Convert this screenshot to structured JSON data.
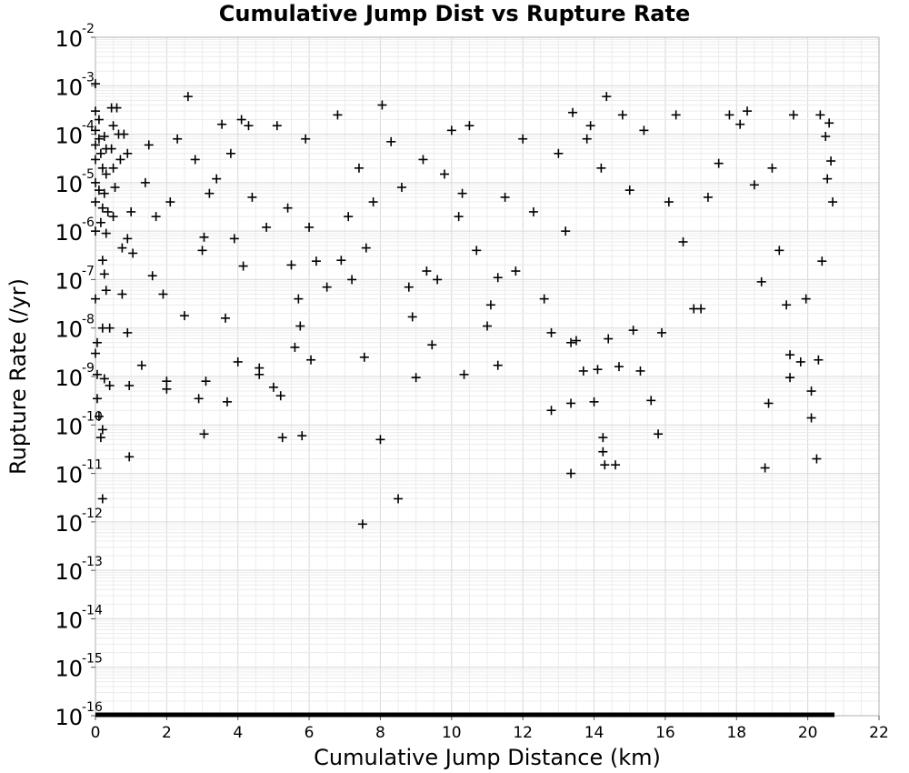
{
  "chart_data": {
    "type": "scatter",
    "title": "Cumulative Jump Dist vs Rupture Rate",
    "xlabel": "Cumulative Jump Distance (km)",
    "ylabel": "Rupture Rate (/yr)",
    "xlim": [
      0,
      22
    ],
    "ylim": [
      1e-16,
      0.01
    ],
    "yscale": "log",
    "x_ticks": [
      0,
      2,
      4,
      6,
      8,
      10,
      12,
      14,
      16,
      18,
      20,
      22
    ],
    "y_tick_labels": [
      {
        "base": "10",
        "exp": "-2"
      },
      {
        "base": "10",
        "exp": "-3"
      },
      {
        "base": "10",
        "exp": "-4"
      },
      {
        "base": "10",
        "exp": "-5"
      },
      {
        "base": "10",
        "exp": "-6"
      },
      {
        "base": "10",
        "exp": "-7"
      },
      {
        "base": "10",
        "exp": "-8"
      },
      {
        "base": "10",
        "exp": "-9"
      },
      {
        "base": "10",
        "exp": "-10"
      },
      {
        "base": "10",
        "exp": "-11"
      },
      {
        "base": "10",
        "exp": "-12"
      },
      {
        "base": "10",
        "exp": "-13"
      },
      {
        "base": "10",
        "exp": "-14"
      },
      {
        "base": "10",
        "exp": "-15"
      },
      {
        "base": "10",
        "exp": "-16"
      }
    ],
    "grid": true,
    "marker": "plus",
    "marker_color": "#000000",
    "series": [
      {
        "points": [
          [
            0.0,
            0.0011
          ],
          [
            0.0,
            0.0003
          ],
          [
            0.0,
            0.00012
          ],
          [
            0.0,
            6e-05
          ],
          [
            0.0,
            3e-05
          ],
          [
            0.0,
            1e-05
          ],
          [
            0.0,
            4e-06
          ],
          [
            0.0,
            1e-06
          ],
          [
            0.0,
            4e-08
          ],
          [
            0.0,
            3e-09
          ],
          [
            0.05,
            5e-09
          ],
          [
            0.05,
            1.1e-09
          ],
          [
            0.1,
            1.5e-10
          ],
          [
            0.05,
            3.5e-10
          ],
          [
            0.15,
            5.5e-11
          ],
          [
            0.2,
            8e-11
          ],
          [
            0.2,
            3e-12
          ],
          [
            0.1,
            0.0002
          ],
          [
            0.1,
            8e-05
          ],
          [
            0.15,
            4e-05
          ],
          [
            0.2,
            2e-05
          ],
          [
            0.1,
            7e-06
          ],
          [
            0.2,
            3e-06
          ],
          [
            0.15,
            1.5e-06
          ],
          [
            0.25,
            9e-05
          ],
          [
            0.3,
            5e-05
          ],
          [
            0.3,
            1.5e-05
          ],
          [
            0.25,
            6e-06
          ],
          [
            0.35,
            2.5e-06
          ],
          [
            0.3,
            9e-07
          ],
          [
            0.2,
            2.5e-07
          ],
          [
            0.25,
            1.3e-07
          ],
          [
            0.3,
            6e-08
          ],
          [
            0.2,
            1e-08
          ],
          [
            0.25,
            9e-10
          ],
          [
            0.4,
            6.5e-10
          ],
          [
            0.4,
            1e-08
          ],
          [
            0.45,
            0.00035
          ],
          [
            0.5,
            0.00015
          ],
          [
            0.45,
            5e-05
          ],
          [
            0.5,
            2e-05
          ],
          [
            0.55,
            8e-06
          ],
          [
            0.5,
            2e-06
          ],
          [
            0.6,
            0.00035
          ],
          [
            0.65,
            0.0001
          ],
          [
            0.7,
            3e-05
          ],
          [
            0.75,
            4.5e-07
          ],
          [
            0.8,
            0.0001
          ],
          [
            0.9,
            4e-05
          ],
          [
            0.9,
            7e-07
          ],
          [
            0.95,
            6.5e-10
          ],
          [
            0.95,
            2.2e-11
          ],
          [
            0.75,
            5e-08
          ],
          [
            0.9,
            8e-09
          ],
          [
            1.0,
            2.5e-06
          ],
          [
            1.05,
            3.5e-07
          ],
          [
            1.3,
            1.7e-09
          ],
          [
            1.4,
            1e-05
          ],
          [
            1.5,
            6e-05
          ],
          [
            1.6,
            1.2e-07
          ],
          [
            1.7,
            2e-06
          ],
          [
            1.9,
            5e-08
          ],
          [
            2.0,
            8e-10
          ],
          [
            2.0,
            5.5e-10
          ],
          [
            2.1,
            4e-06
          ],
          [
            2.3,
            8e-05
          ],
          [
            2.5,
            1.8e-08
          ],
          [
            2.6,
            0.0006
          ],
          [
            2.8,
            3e-05
          ],
          [
            2.9,
            3.5e-10
          ],
          [
            3.0,
            4e-07
          ],
          [
            3.05,
            7.5e-07
          ],
          [
            3.1,
            8e-10
          ],
          [
            3.05,
            6.5e-11
          ],
          [
            3.2,
            6e-06
          ],
          [
            3.4,
            1.2e-05
          ],
          [
            3.55,
            0.00016
          ],
          [
            3.65,
            1.6e-08
          ],
          [
            3.7,
            3e-10
          ],
          [
            3.8,
            4e-05
          ],
          [
            3.9,
            7e-07
          ],
          [
            4.0,
            2e-09
          ],
          [
            4.1,
            0.0002
          ],
          [
            4.15,
            1.9e-07
          ],
          [
            4.3,
            0.00015
          ],
          [
            4.4,
            5e-06
          ],
          [
            4.6,
            1.1e-09
          ],
          [
            4.6,
            1.5e-09
          ],
          [
            4.8,
            1.2e-06
          ],
          [
            5.0,
            6e-10
          ],
          [
            5.1,
            0.00015
          ],
          [
            5.2,
            4e-10
          ],
          [
            5.25,
            5.5e-11
          ],
          [
            5.4,
            3e-06
          ],
          [
            5.5,
            2e-07
          ],
          [
            5.6,
            4e-09
          ],
          [
            5.7,
            4e-08
          ],
          [
            5.75,
            1.1e-08
          ],
          [
            5.8,
            6e-11
          ],
          [
            5.9,
            8e-05
          ],
          [
            6.0,
            1.2e-06
          ],
          [
            6.05,
            2.2e-09
          ],
          [
            6.2,
            2.4e-07
          ],
          [
            6.5,
            7e-08
          ],
          [
            6.8,
            0.00025
          ],
          [
            6.9,
            2.5e-07
          ],
          [
            7.1,
            2e-06
          ],
          [
            7.2,
            1e-07
          ],
          [
            7.4,
            2e-05
          ],
          [
            7.5,
            9e-13
          ],
          [
            7.55,
            2.5e-09
          ],
          [
            7.6,
            4.5e-07
          ],
          [
            7.8,
            4e-06
          ],
          [
            8.0,
            5e-11
          ],
          [
            8.05,
            0.0004
          ],
          [
            8.3,
            7e-05
          ],
          [
            8.5,
            3e-12
          ],
          [
            8.6,
            8e-06
          ],
          [
            8.8,
            7e-08
          ],
          [
            8.9,
            1.7e-08
          ],
          [
            9.0,
            9.5e-10
          ],
          [
            9.2,
            3e-05
          ],
          [
            9.3,
            1.5e-07
          ],
          [
            9.45,
            4.5e-09
          ],
          [
            9.6,
            1e-07
          ],
          [
            9.8,
            1.5e-05
          ],
          [
            10.0,
            0.00012
          ],
          [
            10.2,
            2e-06
          ],
          [
            10.3,
            6e-06
          ],
          [
            10.35,
            1.1e-09
          ],
          [
            10.5,
            0.00015
          ],
          [
            10.7,
            4e-07
          ],
          [
            11.0,
            1.1e-08
          ],
          [
            11.1,
            3e-08
          ],
          [
            11.3,
            1.7e-09
          ],
          [
            11.3,
            1.1e-07
          ],
          [
            11.5,
            5e-06
          ],
          [
            11.8,
            1.5e-07
          ],
          [
            12.0,
            8e-05
          ],
          [
            12.3,
            2.5e-06
          ],
          [
            12.6,
            4e-08
          ],
          [
            12.8,
            8e-09
          ],
          [
            12.8,
            2e-10
          ],
          [
            13.0,
            4e-05
          ],
          [
            13.2,
            1e-06
          ],
          [
            13.35,
            5e-09
          ],
          [
            13.35,
            2.8e-10
          ],
          [
            13.4,
            0.00028
          ],
          [
            13.35,
            1e-11
          ],
          [
            13.5,
            5.5e-09
          ],
          [
            13.7,
            1.3e-09
          ],
          [
            13.8,
            8e-05
          ],
          [
            13.9,
            0.00015
          ],
          [
            14.0,
            3e-10
          ],
          [
            14.1,
            1.4e-09
          ],
          [
            14.2,
            2e-05
          ],
          [
            14.25,
            5.5e-11
          ],
          [
            14.25,
            2.8e-11
          ],
          [
            14.3,
            1.5e-11
          ],
          [
            14.35,
            0.0006
          ],
          [
            14.4,
            6e-09
          ],
          [
            14.6,
            1.5e-11
          ],
          [
            14.7,
            1.6e-09
          ],
          [
            14.8,
            0.00025
          ],
          [
            15.0,
            7e-06
          ],
          [
            15.1,
            9e-09
          ],
          [
            15.3,
            1.3e-09
          ],
          [
            15.4,
            0.00012
          ],
          [
            15.6,
            3.2e-10
          ],
          [
            15.8,
            6.5e-11
          ],
          [
            15.9,
            8e-09
          ],
          [
            16.1,
            4e-06
          ],
          [
            16.3,
            0.00025
          ],
          [
            16.5,
            6e-07
          ],
          [
            16.8,
            2.5e-08
          ],
          [
            17.0,
            2.5e-08
          ],
          [
            17.2,
            5e-06
          ],
          [
            17.5,
            2.5e-05
          ],
          [
            17.8,
            0.00025
          ],
          [
            18.1,
            0.00016
          ],
          [
            18.3,
            0.0003
          ],
          [
            18.5,
            9e-06
          ],
          [
            18.7,
            9e-08
          ],
          [
            18.8,
            1.3e-11
          ],
          [
            18.9,
            2.8e-10
          ],
          [
            19.0,
            2e-05
          ],
          [
            19.2,
            4e-07
          ],
          [
            19.4,
            3e-08
          ],
          [
            19.5,
            2.8e-09
          ],
          [
            19.5,
            9.5e-10
          ],
          [
            19.6,
            0.00025
          ],
          [
            19.8,
            2e-09
          ],
          [
            19.95,
            4e-08
          ],
          [
            20.1,
            5e-10
          ],
          [
            20.1,
            1.4e-10
          ],
          [
            20.25,
            2e-11
          ],
          [
            20.3,
            2.2e-09
          ],
          [
            20.35,
            0.00025
          ],
          [
            20.4,
            2.4e-07
          ],
          [
            20.6,
            0.00017
          ],
          [
            20.65,
            2.8e-05
          ],
          [
            20.7,
            4e-06
          ],
          [
            20.5,
            9e-05
          ],
          [
            20.55,
            1.2e-05
          ]
        ]
      }
    ]
  }
}
